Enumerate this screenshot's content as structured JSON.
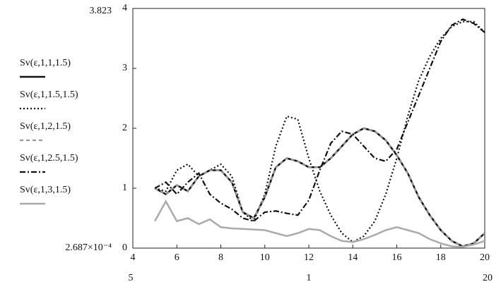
{
  "chart_data": {
    "type": "line",
    "x": [
      5,
      5.5,
      6,
      6.5,
      7,
      7.5,
      8,
      8.5,
      9,
      9.5,
      10,
      10.5,
      11,
      11.5,
      12,
      12.5,
      13,
      13.5,
      14,
      14.5,
      15,
      15.5,
      16,
      16.5,
      17,
      17.5,
      18,
      18.5,
      19,
      19.5,
      20
    ],
    "series": [
      {
        "name": "Sv(ε,1,1,1.5)",
        "color": "#111111",
        "dash": "none",
        "width": 2.5,
        "values": [
          1.0,
          0.9,
          1.05,
          0.95,
          1.2,
          1.3,
          1.3,
          1.1,
          0.6,
          0.5,
          0.85,
          1.35,
          1.5,
          1.45,
          1.35,
          1.35,
          1.5,
          1.7,
          1.9,
          2.0,
          1.95,
          1.8,
          1.55,
          1.25,
          0.85,
          0.55,
          0.3,
          0.12,
          0.03,
          0.08,
          0.25
        ]
      },
      {
        "name": "Sv(ε,1,1.5,1.5)",
        "color": "#111111",
        "dash": "2,3",
        "width": 2.2,
        "values": [
          1.0,
          0.95,
          1.3,
          1.4,
          1.2,
          1.3,
          1.4,
          1.2,
          0.6,
          0.45,
          0.9,
          1.7,
          2.2,
          2.15,
          1.5,
          0.95,
          0.55,
          0.25,
          0.1,
          0.2,
          0.45,
          0.9,
          1.5,
          2.2,
          2.8,
          3.2,
          3.5,
          3.7,
          3.78,
          3.78,
          3.6
        ]
      },
      {
        "name": "Sv(ε,1,2,1.5)",
        "color": "#999999",
        "dash": "5,4",
        "width": 2.2,
        "values": [
          1.0,
          0.9,
          1.05,
          0.95,
          1.2,
          1.3,
          1.3,
          1.1,
          0.6,
          0.5,
          0.85,
          1.35,
          1.5,
          1.45,
          1.35,
          1.35,
          1.5,
          1.7,
          1.9,
          2.0,
          1.95,
          1.8,
          1.55,
          1.25,
          0.85,
          0.55,
          0.3,
          0.12,
          0.03,
          0.08,
          0.25
        ]
      },
      {
        "name": "Sv(ε,1,2.5,1.5)",
        "color": "#111111",
        "dash": "8,3,2,3",
        "width": 2.2,
        "values": [
          1.0,
          1.1,
          0.9,
          1.1,
          1.25,
          0.9,
          0.75,
          0.65,
          0.5,
          0.45,
          0.6,
          0.62,
          0.58,
          0.55,
          0.8,
          1.3,
          1.75,
          1.95,
          1.9,
          1.7,
          1.5,
          1.45,
          1.65,
          2.1,
          2.55,
          3.0,
          3.45,
          3.72,
          3.82,
          3.75,
          3.6
        ]
      },
      {
        "name": "Sv(ε,1,3,1.5)",
        "color": "#aaaaaa",
        "dash": "none",
        "width": 2.5,
        "values": [
          0.45,
          0.78,
          0.45,
          0.5,
          0.4,
          0.48,
          0.35,
          0.33,
          0.32,
          0.31,
          0.3,
          0.25,
          0.2,
          0.25,
          0.32,
          0.3,
          0.2,
          0.12,
          0.1,
          0.15,
          0.22,
          0.3,
          0.35,
          0.3,
          0.25,
          0.15,
          0.08,
          0.03,
          0.02,
          0.06,
          0.12
        ]
      }
    ],
    "xlim": [
      4,
      20
    ],
    "xticks": [
      4,
      6,
      8,
      10,
      12,
      14,
      16,
      18,
      20
    ],
    "ylim": [
      0,
      4
    ],
    "yticks": [
      0,
      1,
      2,
      3,
      4
    ],
    "annotations": [
      "3.823",
      "2.687×10⁻⁴",
      "5",
      "1",
      "20"
    ]
  }
}
